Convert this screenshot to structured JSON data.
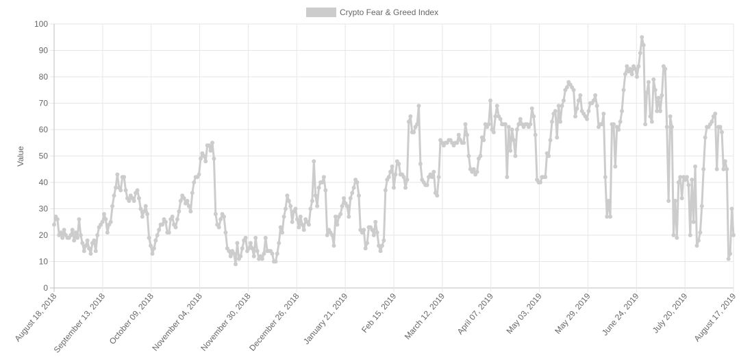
{
  "legend": {
    "label": "Crypto Fear & Greed Index",
    "color": "#cccccc"
  },
  "chart_data": {
    "type": "line",
    "title": "",
    "xlabel": "",
    "ylabel": "Value",
    "ylim": [
      0,
      100
    ],
    "y_ticks": [
      0,
      10,
      20,
      30,
      40,
      50,
      60,
      70,
      80,
      90,
      100
    ],
    "grid": true,
    "legend_position": "top-center",
    "x_tick_labels": [
      "August 18, 2018",
      "September 13, 2018",
      "October 09, 2018",
      "November 04, 2018",
      "November 30, 2018",
      "December 26, 2018",
      "January 21, 2019",
      "Feb 15, 2019",
      "March 12, 2019",
      "April 07, 2019",
      "May 03, 2019",
      "May 29, 2019",
      "June 24, 2019",
      "July 20, 2019",
      "August 17, 2019"
    ],
    "start_date": "2018-08-18",
    "end_date": "2019-08-17",
    "series": [
      {
        "name": "Crypto Fear & Greed Index",
        "color": "#cccccc",
        "values": [
          24,
          27,
          26,
          20,
          21,
          19,
          22,
          20,
          19,
          19,
          20,
          22,
          18,
          21,
          19,
          26,
          20,
          17,
          14,
          16,
          18,
          15,
          13,
          17,
          18,
          14,
          20,
          23,
          24,
          25,
          28,
          26,
          21,
          24,
          25,
          31,
          35,
          38,
          43,
          38,
          37,
          42,
          42,
          37,
          34,
          33,
          35,
          34,
          33,
          36,
          37,
          34,
          30,
          27,
          29,
          31,
          28,
          19,
          16,
          13,
          15,
          18,
          20,
          22,
          24,
          24,
          26,
          25,
          21,
          21,
          26,
          27,
          24,
          23,
          26,
          29,
          33,
          35,
          34,
          32,
          33,
          31,
          29,
          36,
          40,
          42,
          42,
          43,
          49,
          51,
          50,
          48,
          54,
          54,
          52,
          55,
          49,
          28,
          24,
          23,
          26,
          28,
          27,
          21,
          15,
          14,
          12,
          14,
          13,
          9,
          17,
          11,
          12,
          15,
          18,
          19,
          14,
          15,
          17,
          15,
          12,
          19,
          14,
          11,
          12,
          11,
          13,
          19,
          14,
          14,
          14,
          13,
          10,
          10,
          13,
          17,
          23,
          21,
          27,
          30,
          35,
          33,
          31,
          25,
          29,
          30,
          26,
          23,
          27,
          24,
          22,
          26,
          25,
          24,
          30,
          33,
          48,
          35,
          31,
          38,
          40,
          40,
          42,
          37,
          20,
          22,
          21,
          20,
          16,
          27,
          24,
          27,
          28,
          31,
          34,
          32,
          31,
          27,
          34,
          36,
          38,
          41,
          40,
          35,
          22,
          21,
          22,
          15,
          17,
          23,
          23,
          22,
          20,
          25,
          21,
          16,
          14,
          16,
          18,
          37,
          41,
          42,
          44,
          46,
          38,
          43,
          48,
          47,
          43,
          43,
          42,
          38,
          41,
          63,
          65,
          59,
          59,
          61,
          62,
          69,
          47,
          41,
          40,
          39,
          39,
          42,
          43,
          42,
          44,
          36,
          35,
          42,
          56,
          55,
          54,
          55,
          55,
          56,
          56,
          55,
          54,
          55,
          55,
          58,
          56,
          55,
          55,
          62,
          58,
          50,
          45,
          44,
          45,
          43,
          44,
          49,
          50,
          57,
          56,
          62,
          61,
          62,
          71,
          60,
          59,
          65,
          69,
          65,
          64,
          62,
          62,
          62,
          42,
          61,
          52,
          60,
          56,
          50,
          60,
          62,
          64,
          62,
          61,
          62,
          62,
          61,
          62,
          68,
          65,
          58,
          41,
          40,
          40,
          42,
          42,
          42,
          51,
          50,
          56,
          63,
          66,
          67,
          57,
          69,
          63,
          69,
          71,
          75,
          76,
          78,
          77,
          76,
          75,
          65,
          68,
          71,
          73,
          67,
          66,
          65,
          64,
          67,
          70,
          70,
          71,
          73,
          69,
          61,
          62,
          62,
          66,
          42,
          27,
          33,
          27,
          62,
          62,
          46,
          61,
          60,
          63,
          67,
          75,
          81,
          84,
          82,
          83,
          81,
          84,
          83,
          80,
          84,
          89,
          95,
          92,
          62,
          74,
          78,
          65,
          63,
          79,
          75,
          67,
          72,
          67,
          73,
          84,
          83,
          61,
          33,
          65,
          61,
          20,
          33,
          19,
          40,
          42,
          34,
          42,
          41,
          42,
          39,
          20,
          41,
          25,
          46,
          16,
          18,
          21,
          31,
          45,
          57,
          61,
          61,
          62,
          63,
          65,
          66,
          45,
          61,
          61,
          59,
          45,
          48,
          45,
          11,
          13,
          30,
          20
        ]
      }
    ]
  }
}
